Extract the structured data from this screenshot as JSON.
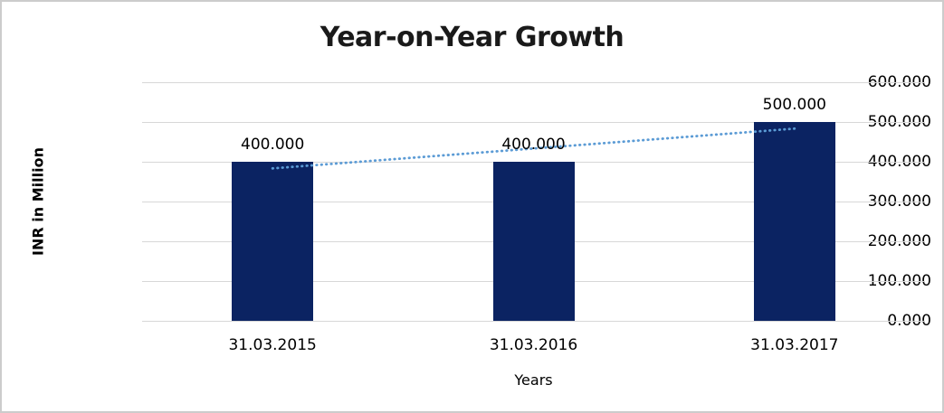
{
  "chart_data": {
    "type": "bar",
    "title": "Year-on-Year Growth",
    "xlabel": "Years",
    "ylabel": "INR in Million",
    "categories": [
      "31.03.2015",
      "31.03.2016",
      "31.03.2017"
    ],
    "values": [
      400,
      400,
      500
    ],
    "data_labels": [
      "400.000",
      "400.000",
      "500.000"
    ],
    "y_ticks": [
      {
        "value": 600,
        "label": "600.000"
      },
      {
        "value": 500,
        "label": "500.000"
      },
      {
        "value": 400,
        "label": "400.000"
      },
      {
        "value": 300,
        "label": "300.000"
      },
      {
        "value": 200,
        "label": "200.000"
      },
      {
        "value": 100,
        "label": "100.000"
      },
      {
        "value": 0,
        "label": "0.000"
      }
    ],
    "ylim": [
      0,
      600
    ],
    "grid": true,
    "legend": "none",
    "trendline": {
      "type": "linear",
      "style": "dotted"
    }
  },
  "colors": {
    "bar": "#0b2362",
    "trendline": "#5b9bd5",
    "gridline": "#d7d7d7",
    "text": "#000000",
    "title_text": "#1a1a1a",
    "frame_border": "#cccccc",
    "background": "#ffffff"
  }
}
